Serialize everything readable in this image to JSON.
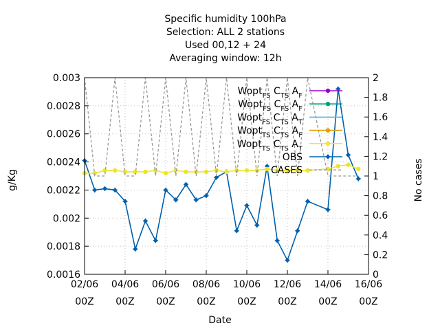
{
  "chart_data": {
    "type": "line",
    "title_lines": [
      "Specific humidity 100hPa",
      "Selection: ALL      2 stations",
      "Used  00,12  + 24",
      "Averaging window: 12h"
    ],
    "xlabel": "Date",
    "ylabel": "g/Kg",
    "y2label": "No cases",
    "x_ticks": [
      {
        "x": 0,
        "label1": "02/06",
        "label2": "00Z"
      },
      {
        "x": 2,
        "label1": "04/06",
        "label2": "00Z"
      },
      {
        "x": 4,
        "label1": "06/06",
        "label2": "00Z"
      },
      {
        "x": 6,
        "label1": "08/06",
        "label2": "00Z"
      },
      {
        "x": 8,
        "label1": "10/06",
        "label2": "00Z"
      },
      {
        "x": 10,
        "label1": "12/06",
        "label2": "00Z"
      },
      {
        "x": 12,
        "label1": "14/06",
        "label2": "00Z"
      },
      {
        "x": 14,
        "label1": "16/06",
        "label2": "00Z"
      }
    ],
    "xlim": [
      0,
      14
    ],
    "ylim": [
      0.0016,
      0.003
    ],
    "y2lim": [
      0,
      2
    ],
    "y_ticks": [
      "0.0016",
      "0.0018",
      "0.002",
      "0.0022",
      "0.0024",
      "0.0026",
      "0.0028",
      "0.003"
    ],
    "y2_ticks": [
      "0",
      "0.2",
      "0.4",
      "0.6",
      "0.8",
      "1",
      "1.2",
      "1.4",
      "1.6",
      "1.8",
      "2"
    ],
    "grid": true,
    "legend_position": "top-right",
    "series": [
      {
        "name": "OBS",
        "color": "#0060ad",
        "axis": "y",
        "x": [
          0,
          0.5,
          1,
          1.5,
          2,
          2.5,
          3,
          3.5,
          4,
          4.5,
          5,
          5.5,
          6,
          6.5,
          7,
          7.5,
          8,
          8.5,
          9,
          9.5,
          10,
          10.5,
          11,
          12,
          12.5,
          13,
          13.5
        ],
        "values": [
          0.00241,
          0.0022,
          0.00221,
          0.0022,
          0.00212,
          0.00178,
          0.00198,
          0.00184,
          0.0022,
          0.00213,
          0.00224,
          0.00213,
          0.00216,
          0.00229,
          0.00233,
          0.00191,
          0.00209,
          0.00195,
          0.00237,
          0.00184,
          0.0017,
          0.00191,
          0.00212,
          0.00206,
          0.00292,
          0.00245,
          0.00228
        ]
      },
      {
        "name": "Wopt_TS C_TS A_T",
        "color": "#eee52a",
        "axis": "y",
        "x": [
          0,
          0.5,
          1,
          1.5,
          2,
          2.5,
          3,
          3.5,
          4,
          4.5,
          5,
          5.5,
          6,
          6.5,
          7,
          7.5,
          8,
          8.5,
          9,
          9.5,
          10,
          10.5,
          11,
          12,
          12.5,
          13,
          13.5
        ],
        "values": [
          0.00232,
          0.00232,
          0.00234,
          0.00234,
          0.00233,
          0.00233,
          0.00233,
          0.00234,
          0.00232,
          0.00234,
          0.00233,
          0.00233,
          0.00233,
          0.00234,
          0.00233,
          0.00234,
          0.00234,
          0.00234,
          0.00235,
          0.00234,
          0.00234,
          0.00234,
          0.00234,
          0.00235,
          0.00237,
          0.00238,
          0.00235
        ]
      },
      {
        "name": "CASES",
        "color": "#999999",
        "axis": "y2",
        "x": [
          0,
          0.5,
          1,
          1.5,
          2,
          2.5,
          3,
          3.5,
          4,
          4.5,
          5,
          5.5,
          6,
          6.5,
          7,
          7.5,
          8,
          8.5,
          9,
          9.5,
          10,
          10.5,
          11,
          12,
          12.5,
          13,
          13.5
        ],
        "values": [
          2,
          1,
          1,
          2,
          1,
          1,
          2,
          1,
          2,
          1,
          2,
          1,
          2,
          1,
          2,
          1,
          2,
          1,
          2,
          1,
          2,
          1,
          2,
          1,
          1,
          1,
          1
        ]
      }
    ],
    "legend": [
      {
        "w": "Wopt",
        "ws": "FS",
        "c": "C",
        "cs": "T",
        "cs2": "S",
        "a": "A",
        "as": "F",
        "color": "#9400d3",
        "marker": "dot"
      },
      {
        "w": "Wopt",
        "ws": "FS",
        "c": "C",
        "cs": "F",
        "cs2": "S",
        "a": "A",
        "as": "F",
        "color": "#009e73",
        "marker": "dot"
      },
      {
        "w": "Wopt",
        "ws": "FS",
        "c": "C",
        "cs": "T",
        "cs2": "S",
        "a": "A",
        "as": "T",
        "color": "#56b4e9",
        "marker": "none"
      },
      {
        "w": "Wopt",
        "ws": "TS",
        "c": "C",
        "cs": "T",
        "cs2": "S",
        "a": "A",
        "as": "F",
        "color": "#e69f00",
        "marker": "dot"
      },
      {
        "w": "Wopt",
        "ws": "TS",
        "c": "C",
        "cs": "T",
        "cs2": "S",
        "a": "A",
        "as": "T",
        "color": "#f0e442",
        "marker": "dot"
      },
      {
        "label": "OBS",
        "color": "#0060ad",
        "marker": "star"
      },
      {
        "label": "CASES",
        "color": "#999999",
        "marker": "dash"
      }
    ]
  }
}
